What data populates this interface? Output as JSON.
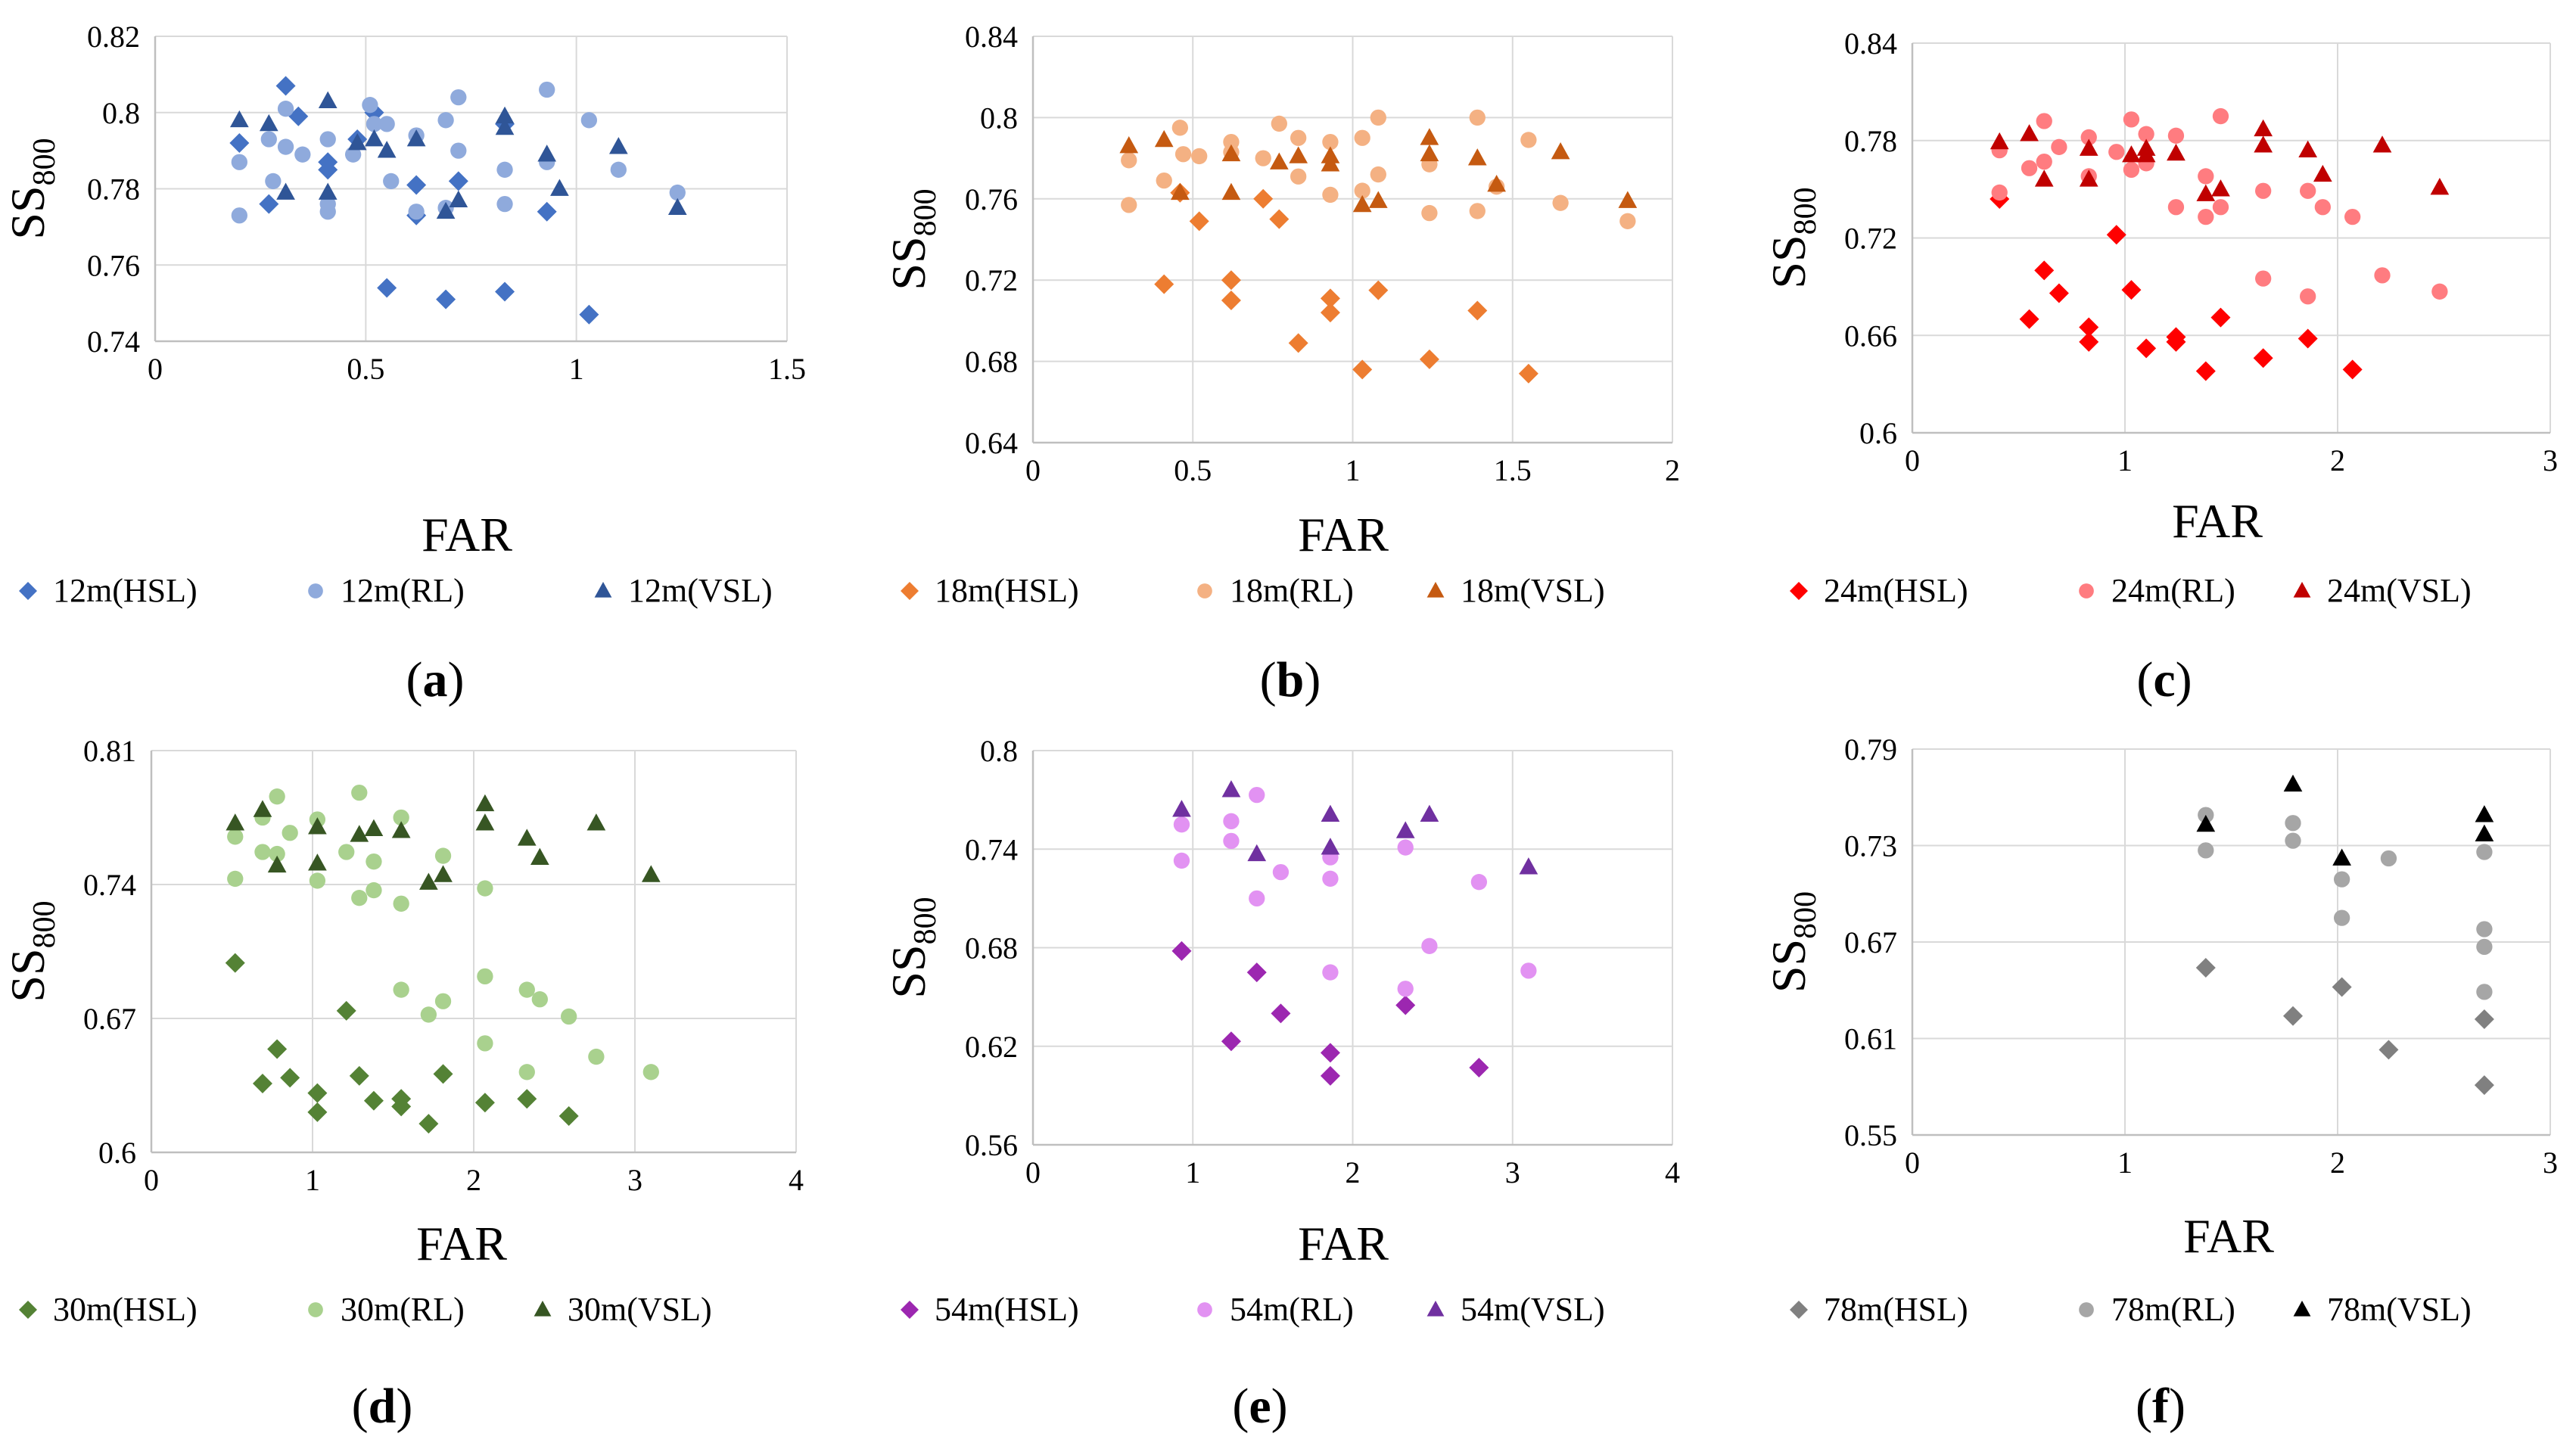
{
  "figure": {
    "panels": [
      "a",
      "b",
      "c",
      "d",
      "e",
      "f"
    ]
  },
  "chart_data": [
    {
      "type": "scatter",
      "label": "a",
      "panel_label_text": "(a)",
      "xlabel": "FAR",
      "ylabel": "SS",
      "ylabel_sub": "800",
      "xlim": [
        0,
        1.5
      ],
      "ylim": [
        0.74,
        0.82
      ],
      "xticks": [
        0,
        0.5,
        1,
        1.5
      ],
      "xtick_labels": [
        "0",
        "0.5",
        "1",
        "1.5"
      ],
      "yticks": [
        0.74,
        0.76,
        0.78,
        0.8,
        0.82
      ],
      "ytick_labels": [
        "0.74",
        "0.76",
        "0.78",
        "0.8",
        "0.82"
      ],
      "series": [
        {
          "name": "12m(HSL)",
          "marker": "diamond",
          "color": "#4472c4",
          "x": [
            0.2,
            0.27,
            0.31,
            0.34,
            0.41,
            0.41,
            0.48,
            0.52,
            0.55,
            0.62,
            0.62,
            0.69,
            0.72,
            0.83,
            0.83,
            0.93,
            1.03
          ],
          "y": [
            0.792,
            0.776,
            0.807,
            0.799,
            0.787,
            0.785,
            0.793,
            0.8,
            0.754,
            0.781,
            0.773,
            0.751,
            0.782,
            0.797,
            0.753,
            0.774,
            0.747
          ]
        },
        {
          "name": "12m(RL)",
          "marker": "circle",
          "color": "#8faadc",
          "x": [
            0.2,
            0.2,
            0.27,
            0.28,
            0.31,
            0.31,
            0.35,
            0.41,
            0.41,
            0.41,
            0.47,
            0.51,
            0.52,
            0.55,
            0.56,
            0.62,
            0.62,
            0.69,
            0.69,
            0.72,
            0.72,
            0.83,
            0.83,
            0.93,
            0.93,
            1.03,
            1.1,
            1.24
          ],
          "y": [
            0.787,
            0.773,
            0.793,
            0.782,
            0.801,
            0.791,
            0.789,
            0.793,
            0.776,
            0.774,
            0.789,
            0.802,
            0.797,
            0.797,
            0.782,
            0.794,
            0.774,
            0.798,
            0.775,
            0.804,
            0.79,
            0.785,
            0.776,
            0.806,
            0.787,
            0.798,
            0.785,
            0.779
          ]
        },
        {
          "name": "12m(VSL)",
          "marker": "triangle",
          "color": "#2f5597",
          "x": [
            0.2,
            0.27,
            0.31,
            0.41,
            0.41,
            0.48,
            0.52,
            0.55,
            0.62,
            0.69,
            0.72,
            0.83,
            0.83,
            0.93,
            0.96,
            1.1,
            1.24
          ],
          "y": [
            0.798,
            0.797,
            0.779,
            0.803,
            0.779,
            0.792,
            0.793,
            0.79,
            0.793,
            0.774,
            0.777,
            0.799,
            0.796,
            0.789,
            0.78,
            0.791,
            0.775
          ]
        }
      ]
    },
    {
      "type": "scatter",
      "label": "b",
      "panel_label_text": "(b)",
      "xlabel": "FAR",
      "ylabel": "SS",
      "ylabel_sub": "800",
      "xlim": [
        0,
        2
      ],
      "ylim": [
        0.64,
        0.84
      ],
      "xticks": [
        0,
        0.5,
        1,
        1.5,
        2
      ],
      "xtick_labels": [
        "0",
        "0.5",
        "1",
        "1.5",
        "2"
      ],
      "yticks": [
        0.64,
        0.68,
        0.72,
        0.76,
        0.8,
        0.84
      ],
      "ytick_labels": [
        "0.64",
        "0.68",
        "0.72",
        "0.76",
        "0.8",
        "0.84"
      ],
      "series": [
        {
          "name": "18m(HSL)",
          "marker": "diamond",
          "color": "#ed7d31",
          "x": [
            0.41,
            0.46,
            0.52,
            0.62,
            0.62,
            0.72,
            0.77,
            0.83,
            0.93,
            0.93,
            1.03,
            1.08,
            1.24,
            1.39,
            1.55
          ],
          "y": [
            0.718,
            0.763,
            0.749,
            0.72,
            0.71,
            0.76,
            0.75,
            0.689,
            0.711,
            0.704,
            0.676,
            0.715,
            0.681,
            0.705,
            0.674
          ]
        },
        {
          "name": "18m(RL)",
          "marker": "circle",
          "color": "#f4b183",
          "x": [
            0.3,
            0.3,
            0.41,
            0.46,
            0.47,
            0.52,
            0.62,
            0.62,
            0.72,
            0.77,
            0.83,
            0.83,
            0.93,
            0.93,
            1.03,
            1.03,
            1.08,
            1.08,
            1.24,
            1.24,
            1.39,
            1.39,
            1.45,
            1.55,
            1.65,
            1.86
          ],
          "y": [
            0.779,
            0.757,
            0.769,
            0.795,
            0.782,
            0.781,
            0.788,
            0.783,
            0.78,
            0.797,
            0.79,
            0.771,
            0.788,
            0.762,
            0.79,
            0.764,
            0.8,
            0.772,
            0.777,
            0.753,
            0.8,
            0.754,
            0.766,
            0.789,
            0.758,
            0.749
          ]
        },
        {
          "name": "18m(VSL)",
          "marker": "triangle",
          "color": "#c55a11",
          "x": [
            0.3,
            0.41,
            0.46,
            0.62,
            0.62,
            0.77,
            0.83,
            0.93,
            0.93,
            1.03,
            1.08,
            1.24,
            1.24,
            1.39,
            1.45,
            1.65,
            1.86
          ],
          "y": [
            0.786,
            0.789,
            0.763,
            0.782,
            0.763,
            0.778,
            0.781,
            0.781,
            0.777,
            0.757,
            0.759,
            0.79,
            0.782,
            0.78,
            0.767,
            0.783,
            0.759
          ]
        }
      ]
    },
    {
      "type": "scatter",
      "label": "c",
      "panel_label_text": "(c)",
      "xlabel": "FAR",
      "ylabel": "SS",
      "ylabel_sub": "800",
      "xlim": [
        0,
        3
      ],
      "ylim": [
        0.6,
        0.84
      ],
      "xticks": [
        0,
        1,
        2,
        3
      ],
      "xtick_labels": [
        "0",
        "1",
        "2",
        "3"
      ],
      "yticks": [
        0.6,
        0.66,
        0.72,
        0.78,
        0.84
      ],
      "ytick_labels": [
        "0.6",
        "0.66",
        "0.72",
        "0.78",
        "0.84"
      ],
      "series": [
        {
          "name": "24m(HSL)",
          "marker": "diamond",
          "color": "#ff0000",
          "x": [
            0.41,
            0.55,
            0.62,
            0.69,
            0.83,
            0.83,
            0.96,
            1.03,
            1.1,
            1.24,
            1.24,
            1.38,
            1.45,
            1.65,
            1.86,
            2.07
          ],
          "y": [
            0.744,
            0.67,
            0.7,
            0.686,
            0.665,
            0.656,
            0.722,
            0.688,
            0.652,
            0.659,
            0.656,
            0.638,
            0.671,
            0.646,
            0.658,
            0.639
          ]
        },
        {
          "name": "24m(RL)",
          "marker": "circle",
          "color": "#ff7c80",
          "x": [
            0.41,
            0.41,
            0.55,
            0.62,
            0.62,
            0.69,
            0.83,
            0.83,
            0.96,
            1.03,
            1.03,
            1.1,
            1.1,
            1.24,
            1.24,
            1.38,
            1.38,
            1.45,
            1.45,
            1.65,
            1.65,
            1.86,
            1.86,
            1.93,
            2.07,
            2.21,
            2.48
          ],
          "y": [
            0.774,
            0.748,
            0.763,
            0.792,
            0.767,
            0.776,
            0.782,
            0.758,
            0.773,
            0.793,
            0.762,
            0.784,
            0.766,
            0.783,
            0.739,
            0.758,
            0.733,
            0.795,
            0.739,
            0.749,
            0.695,
            0.749,
            0.684,
            0.739,
            0.733,
            0.697,
            0.687
          ]
        },
        {
          "name": "24m(VSL)",
          "marker": "triangle",
          "color": "#c00000",
          "x": [
            0.41,
            0.55,
            0.62,
            0.83,
            0.83,
            1.03,
            1.1,
            1.1,
            1.24,
            1.38,
            1.45,
            1.65,
            1.65,
            1.86,
            1.93,
            2.21,
            2.48
          ],
          "y": [
            0.779,
            0.784,
            0.756,
            0.775,
            0.756,
            0.771,
            0.775,
            0.771,
            0.772,
            0.747,
            0.75,
            0.787,
            0.777,
            0.774,
            0.759,
            0.777,
            0.751
          ]
        }
      ]
    },
    {
      "type": "scatter",
      "label": "d",
      "panel_label_text": "(d)",
      "xlabel": "FAR",
      "ylabel": "SS",
      "ylabel_sub": "800",
      "xlim": [
        0,
        4
      ],
      "ylim": [
        0.6,
        0.81
      ],
      "xticks": [
        0,
        1,
        2,
        3,
        4
      ],
      "xtick_labels": [
        "0",
        "1",
        "2",
        "3",
        "4"
      ],
      "yticks": [
        0.6,
        0.67,
        0.74,
        0.81
      ],
      "ytick_labels": [
        "0.6",
        "0.67",
        "0.74",
        "0.81"
      ],
      "series": [
        {
          "name": "30m(HSL)",
          "marker": "diamond",
          "color": "#548235",
          "x": [
            0.52,
            0.69,
            0.78,
            0.86,
            1.03,
            1.03,
            1.21,
            1.29,
            1.38,
            1.55,
            1.55,
            1.72,
            1.81,
            2.07,
            2.33,
            2.59
          ],
          "y": [
            0.699,
            0.636,
            0.654,
            0.639,
            0.631,
            0.621,
            0.674,
            0.64,
            0.627,
            0.628,
            0.624,
            0.615,
            0.641,
            0.626,
            0.628,
            0.619
          ]
        },
        {
          "name": "30m(RL)",
          "marker": "circle",
          "color": "#a9d18e",
          "x": [
            0.52,
            0.52,
            0.69,
            0.69,
            0.78,
            0.78,
            0.86,
            1.03,
            1.03,
            1.21,
            1.29,
            1.29,
            1.38,
            1.38,
            1.55,
            1.55,
            1.55,
            1.72,
            1.81,
            1.81,
            2.07,
            2.07,
            2.07,
            2.33,
            2.33,
            2.41,
            2.59,
            2.76,
            3.1
          ],
          "y": [
            0.765,
            0.743,
            0.775,
            0.757,
            0.786,
            0.756,
            0.767,
            0.774,
            0.742,
            0.757,
            0.788,
            0.733,
            0.752,
            0.737,
            0.775,
            0.73,
            0.685,
            0.672,
            0.755,
            0.679,
            0.738,
            0.692,
            0.657,
            0.685,
            0.642,
            0.68,
            0.671,
            0.65,
            0.642
          ]
        },
        {
          "name": "30m(VSL)",
          "marker": "triangle",
          "color": "#375623",
          "x": [
            0.52,
            0.69,
            0.78,
            1.03,
            1.03,
            1.29,
            1.38,
            1.55,
            1.72,
            1.81,
            2.07,
            2.07,
            2.33,
            2.41,
            2.76,
            3.1
          ],
          "y": [
            0.772,
            0.779,
            0.75,
            0.77,
            0.751,
            0.766,
            0.769,
            0.768,
            0.741,
            0.745,
            0.782,
            0.772,
            0.764,
            0.754,
            0.772,
            0.745
          ]
        }
      ]
    },
    {
      "type": "scatter",
      "label": "e",
      "panel_label_text": "(e)",
      "xlabel": "FAR",
      "ylabel": "SS",
      "ylabel_sub": "800",
      "xlim": [
        0,
        4
      ],
      "ylim": [
        0.56,
        0.8
      ],
      "xticks": [
        0,
        1,
        2,
        3,
        4
      ],
      "xtick_labels": [
        "0",
        "1",
        "2",
        "3",
        "4"
      ],
      "yticks": [
        0.56,
        0.62,
        0.68,
        0.74,
        0.8
      ],
      "ytick_labels": [
        "0.56",
        "0.62",
        "0.68",
        "0.74",
        "0.8"
      ],
      "series": [
        {
          "name": "54m(HSL)",
          "marker": "diamond",
          "color": "#9c27b0",
          "x": [
            0.93,
            1.24,
            1.4,
            1.55,
            1.86,
            1.86,
            2.33,
            2.79
          ],
          "y": [
            0.678,
            0.623,
            0.665,
            0.64,
            0.616,
            0.602,
            0.645,
            0.607
          ]
        },
        {
          "name": "54m(RL)",
          "marker": "circle",
          "color": "#e292f2",
          "x": [
            0.93,
            0.93,
            1.24,
            1.24,
            1.4,
            1.4,
            1.55,
            1.86,
            1.86,
            1.86,
            2.33,
            2.33,
            2.48,
            2.79,
            3.1
          ],
          "y": [
            0.755,
            0.733,
            0.757,
            0.745,
            0.773,
            0.71,
            0.726,
            0.735,
            0.722,
            0.665,
            0.741,
            0.655,
            0.681,
            0.72,
            0.666
          ]
        },
        {
          "name": "54m(VSL)",
          "marker": "triangle",
          "color": "#7030a0",
          "x": [
            0.93,
            1.24,
            1.4,
            1.86,
            1.86,
            2.33,
            2.48,
            3.1
          ],
          "y": [
            0.764,
            0.776,
            0.737,
            0.761,
            0.741,
            0.751,
            0.761,
            0.729
          ]
        }
      ]
    },
    {
      "type": "scatter",
      "label": "f",
      "panel_label_text": "(f)",
      "xlabel": "FAR",
      "ylabel": "SS",
      "ylabel_sub": "800",
      "xlim": [
        0,
        3
      ],
      "ylim": [
        0.55,
        0.79
      ],
      "xticks": [
        0,
        1,
        2,
        3
      ],
      "xtick_labels": [
        "0",
        "1",
        "2",
        "3"
      ],
      "yticks": [
        0.55,
        0.61,
        0.67,
        0.73,
        0.79
      ],
      "ytick_labels": [
        "0.55",
        "0.61",
        "0.67",
        "0.73",
        "0.79"
      ],
      "series": [
        {
          "name": "78m(HSL)",
          "marker": "diamond",
          "color": "#808080",
          "x": [
            1.38,
            1.79,
            2.02,
            2.24,
            2.69,
            2.69
          ],
          "y": [
            0.654,
            0.624,
            0.642,
            0.603,
            0.622,
            0.581
          ]
        },
        {
          "name": "78m(RL)",
          "marker": "circle",
          "color": "#a6a6a6",
          "x": [
            1.38,
            1.38,
            1.79,
            1.79,
            2.02,
            2.02,
            2.24,
            2.69,
            2.69,
            2.69,
            2.69
          ],
          "y": [
            0.749,
            0.727,
            0.744,
            0.733,
            0.709,
            0.685,
            0.722,
            0.726,
            0.678,
            0.667,
            0.639
          ]
        },
        {
          "name": "78m(VSL)",
          "marker": "triangle",
          "color": "#000000",
          "x": [
            1.38,
            1.79,
            2.02,
            2.69,
            2.69
          ],
          "y": [
            0.743,
            0.768,
            0.722,
            0.749,
            0.737
          ]
        }
      ]
    }
  ]
}
